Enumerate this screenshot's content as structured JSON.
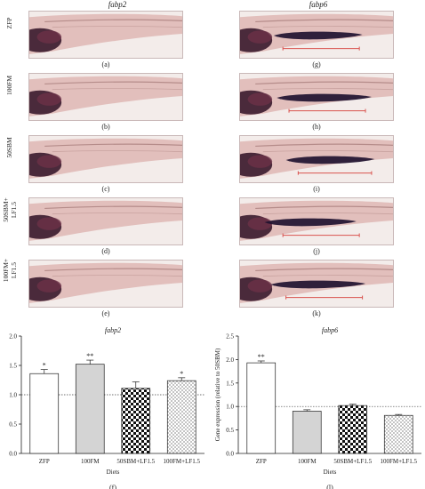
{
  "figure": {
    "left_column_title": "fabp2",
    "right_column_title": "fabp6",
    "row_labels": [
      "ZFP",
      "100FM",
      "50SBM",
      "50SBM+\nLF1.5",
      "100FM+\nLF1.5"
    ],
    "left_panel_letters": [
      "(a)",
      "(b)",
      "(c)",
      "(d)",
      "(e)"
    ],
    "right_panel_letters": [
      "(g)",
      "(h)",
      "(i)",
      "(j)",
      "(k)"
    ],
    "chart_letters": [
      "(f)",
      "(l)"
    ]
  },
  "chart_data": [
    {
      "type": "bar",
      "title": "fabp2",
      "xlabel": "Diets",
      "ylabel": "",
      "categories": [
        "ZFP",
        "100FM",
        "50SBM+LF1.5",
        "100FM+LF1.5"
      ],
      "values": [
        1.36,
        1.52,
        1.11,
        1.24
      ],
      "errors": [
        0.07,
        0.07,
        0.11,
        0.05
      ],
      "significance": [
        "*",
        "**",
        "",
        "*"
      ],
      "ylim": [
        0,
        2.0
      ],
      "yticks": [
        "0.0",
        "0.5",
        "1.0",
        "1.5",
        "2.0"
      ],
      "reference_line": 1.0,
      "patterns": [
        "white",
        "gray",
        "checker",
        "light-checker"
      ]
    },
    {
      "type": "bar",
      "title": "fabp6",
      "xlabel": "Diets",
      "ylabel": "Gene expression (relative to 50SBM)",
      "categories": [
        "ZFP",
        "100FM",
        "50SBM+LF1.5",
        "100FM+LF1.5"
      ],
      "values": [
        1.93,
        0.9,
        1.02,
        0.81
      ],
      "errors": [
        0.04,
        0.03,
        0.03,
        0.02
      ],
      "significance": [
        "**",
        "",
        "",
        ""
      ],
      "ylim": [
        0,
        2.5
      ],
      "yticks": [
        "0.0",
        "0.5",
        "1.0",
        "1.5",
        "2.0",
        "2.5"
      ],
      "reference_line": 1.0,
      "patterns": [
        "white",
        "gray",
        "checker",
        "light-checker"
      ]
    }
  ],
  "colors": {
    "larva_body": "#e2bfbc",
    "larva_background": "#f3ecea",
    "yolk_dark": "#3a1a2c",
    "stain_dark": "#1f1230",
    "scale_bar": "#d9534f"
  }
}
